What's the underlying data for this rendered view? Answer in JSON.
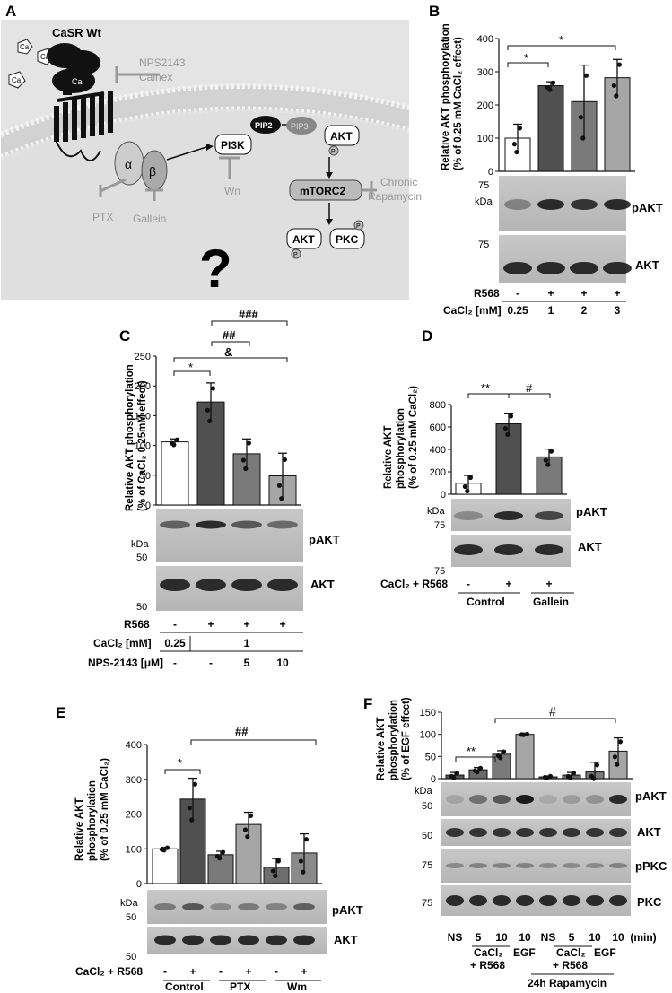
{
  "panels": {
    "A": {
      "letter": "A",
      "receptor": "CaSR Wt",
      "ion": "Ca",
      "inhibitor_top": [
        "NPS2143",
        "Calhex"
      ],
      "alpha": "α",
      "beta": "β",
      "pi3k": "PI3K",
      "pip2": "PIP2",
      "pip3": "PIP3",
      "akt": "AKT",
      "mtorc2": "mTORC2",
      "rapamycin": [
        "Chronic",
        "Rapamycin"
      ],
      "pkc": "PKC",
      "wn": "Wn",
      "ptx": "PTX",
      "gallein": "Gallein",
      "question": "?",
      "phospho": "P"
    },
    "B": {
      "letter": "B",
      "ylabel": [
        "Relative AKT phosphorylation",
        "(% of 0.25 mM CaCl₂ effect)"
      ],
      "blot_labels": [
        "pAKT",
        "AKT"
      ],
      "markers": [
        "75",
        "kDa",
        "75"
      ],
      "row_r568_label": "R568",
      "row_r568": [
        "-",
        "+",
        "+",
        "+"
      ],
      "row_ca_label": "CaCl₂ [mM]",
      "row_ca": [
        "0.25",
        "1",
        "2",
        "3"
      ],
      "sig": [
        "*",
        "*"
      ]
    },
    "C": {
      "letter": "C",
      "ylabel": [
        "Relative AKT phosphorylation",
        "(% of CaCl₂ 0.25mM effect)"
      ],
      "blot_labels": [
        "pAKT",
        "AKT"
      ],
      "markers": [
        "kDa",
        "50",
        "50"
      ],
      "row_r568_label": "R568",
      "row_r568": [
        "-",
        "+",
        "+",
        "+"
      ],
      "row_ca_label": "CaCl₂ [mM]",
      "row_ca": [
        "0.25",
        "1"
      ],
      "row_nps_label": "NPS-2143 [μM]",
      "row_nps": [
        "-",
        "-",
        "5",
        "10"
      ],
      "sig": [
        "###",
        "##",
        "&",
        "*"
      ]
    },
    "D": {
      "letter": "D",
      "ylabel": [
        "Relative AKT",
        "phosphorylation",
        "(% of 0.25 mM CaCl₂)"
      ],
      "blot_labels": [
        "pAKT",
        "AKT"
      ],
      "markers": [
        "kDa",
        "75",
        "75"
      ],
      "row_label": "CaCl₂ + R568",
      "row": [
        "-",
        "+",
        "+"
      ],
      "groups": [
        "Control",
        "Gallein"
      ],
      "sig": [
        "**",
        "#"
      ]
    },
    "E": {
      "letter": "E",
      "ylabel": [
        "Relative AKT",
        "phosphorylation",
        "(% of 0.25 mM CaCl₂)"
      ],
      "blot_labels": [
        "pAKT",
        "AKT"
      ],
      "markers": [
        "kDa",
        "50",
        "50"
      ],
      "row_label": "CaCl₂ + R568",
      "row": [
        "-",
        "+",
        "-",
        "+",
        "-",
        "+"
      ],
      "groups": [
        "Control",
        "PTX",
        "Wm"
      ],
      "sig": [
        "*",
        "##"
      ]
    },
    "F": {
      "letter": "F",
      "ylabel": [
        "Relative AKT",
        "phosphorylation",
        "(% of EGF effect)"
      ],
      "blot_labels": [
        "pAKT",
        "AKT",
        "pPKC",
        "PKC"
      ],
      "markers": [
        "kDa",
        "50",
        "50",
        "75",
        "75"
      ],
      "row": [
        "NS",
        "5",
        "10",
        "10",
        "NS",
        "5",
        "10",
        "10",
        "(min)"
      ],
      "groups": [
        "CaCl₂",
        "+ R568",
        "EGF",
        "CaCl₂",
        "+ R568",
        "EGF"
      ],
      "bottom": "24h Rapamycin",
      "sig": [
        "**",
        "#"
      ]
    }
  },
  "chart_data": [
    {
      "panel": "B",
      "type": "bar",
      "categories": [
        "0.25",
        "1",
        "2",
        "3"
      ],
      "values": [
        100,
        258,
        210,
        282
      ],
      "errors": [
        42,
        12,
        110,
        55
      ],
      "colors": [
        "#ffffff",
        "#505050",
        "#7a7a7a",
        "#a6a6a6"
      ],
      "ylim": [
        0,
        400
      ],
      "yticks": [
        "0",
        "100",
        "200",
        "300",
        "400"
      ]
    },
    {
      "panel": "C",
      "type": "bar",
      "categories": [
        "0.25",
        "1",
        "1+5",
        "1+10"
      ],
      "values": [
        106,
        173,
        86,
        49
      ],
      "errors": [
        5,
        32,
        25,
        38
      ],
      "colors": [
        "#ffffff",
        "#505050",
        "#7a7a7a",
        "#a6a6a6"
      ],
      "ylim": [
        0,
        250
      ],
      "yticks": [
        "0",
        "50",
        "100",
        "150",
        "200",
        "250"
      ]
    },
    {
      "panel": "D",
      "type": "bar",
      "categories": [
        "Control -",
        "Control +",
        "Gallein +"
      ],
      "values": [
        98,
        628,
        333
      ],
      "errors": [
        70,
        95,
        70
      ],
      "colors": [
        "#ffffff",
        "#505050",
        "#7a7a7a"
      ],
      "ylim": [
        0,
        800
      ],
      "yticks": [
        "0",
        "200",
        "400",
        "600",
        "800"
      ]
    },
    {
      "panel": "E",
      "type": "bar",
      "categories": [
        "Control -",
        "Control +",
        "PTX -",
        "PTX +",
        "Wm -",
        "Wm +"
      ],
      "values": [
        100,
        243,
        83,
        170,
        47,
        88
      ],
      "errors": [
        4,
        60,
        10,
        35,
        25,
        55
      ],
      "colors": [
        "#ffffff",
        "#505050",
        "#7a7a7a",
        "#a6a6a6",
        "#6e6e6e",
        "#8a8a8a"
      ],
      "ylim": [
        0,
        400
      ],
      "yticks": [
        "0",
        "100",
        "200",
        "300",
        "400"
      ]
    },
    {
      "panel": "F",
      "type": "bar",
      "categories": [
        "NS",
        "5",
        "10",
        "EGF",
        "NS",
        "5",
        "10",
        "EGF"
      ],
      "values": [
        8,
        20,
        55,
        100,
        4,
        8,
        15,
        62
      ],
      "errors": [
        6,
        5,
        8,
        1,
        2,
        6,
        22,
        30
      ],
      "colors": [
        "#555",
        "#6a6a6a",
        "#7a7a7a",
        "#a6a6a6",
        "#555",
        "#6a6a6a",
        "#7a7a7a",
        "#a6a6a6"
      ],
      "ylim": [
        0,
        150
      ],
      "yticks": [
        "0",
        "50",
        "100",
        "150"
      ]
    }
  ]
}
